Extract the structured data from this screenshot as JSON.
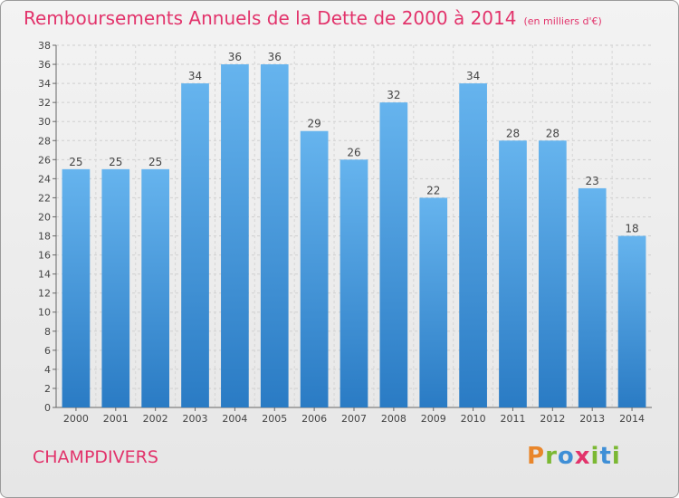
{
  "title": "Remboursements Annuels de la Dette de 2000 à 2014",
  "subtitle": "(en milliers d'€)",
  "commune": "CHAMPDIVERS",
  "logo": {
    "p": "P",
    "r": "r",
    "o": "o",
    "x": "x",
    "i": "i",
    "t": "t",
    "i2": "i"
  },
  "chart_data": {
    "type": "bar",
    "title": "Remboursements Annuels de la Dette de 2000 à 2014",
    "subtitle": "(en milliers d'€)",
    "categories": [
      "2000",
      "2001",
      "2002",
      "2003",
      "2004",
      "2005",
      "2006",
      "2007",
      "2008",
      "2009",
      "2010",
      "2011",
      "2012",
      "2013",
      "2014"
    ],
    "values": [
      25,
      25,
      25,
      34,
      36,
      36,
      29,
      26,
      32,
      22,
      34,
      28,
      28,
      23,
      18
    ],
    "ylim": [
      0,
      38
    ],
    "yticks": [
      0,
      2,
      4,
      6,
      8,
      10,
      12,
      14,
      16,
      18,
      20,
      22,
      24,
      26,
      28,
      30,
      32,
      34,
      36,
      38
    ],
    "grid": true,
    "bar_color": "#4a9ee0",
    "accent_color": "#e2336b"
  }
}
